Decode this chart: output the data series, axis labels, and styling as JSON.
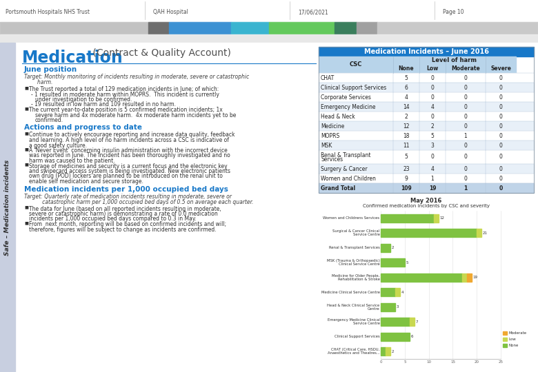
{
  "header_text": [
    "Portsmouth Hospitals NHS Trust",
    "QAH Hospital",
    "17/06/2021",
    "Page 10"
  ],
  "title_main": "Medication",
  "title_sub": " (Contract & Quality Account)",
  "section1_title": "June position",
  "section1_target_lines": [
    "Target: Monthly monitoring of incidents resulting in moderate, severe or catastrophic",
    "        harm."
  ],
  "section2_title": "Actions and progress to date",
  "section3_title": "Medication incidents per 1,000 occupied bed days",
  "section3_target_lines": [
    "Target: Quarterly rate of medication incidents resulting in moderate, severe or",
    "           catastrophic harm per 1,000 occupied bed days of 0.5 on average each quarter."
  ],
  "table_title": "Medication Incidents – June 2016",
  "table_headers": [
    "CSC",
    "None",
    "Low",
    "Moderate",
    "Severe"
  ],
  "table_subheader": "Level of harm",
  "table_rows": [
    [
      "CHAT",
      "5",
      "0",
      "0",
      "0"
    ],
    [
      "Clinical Support Services",
      "6",
      "0",
      "0",
      "0"
    ],
    [
      "Corporate Services",
      "4",
      "0",
      "0",
      "0"
    ],
    [
      "Emergency Medicine",
      "14",
      "4",
      "0",
      "0"
    ],
    [
      "Head & Neck",
      "2",
      "0",
      "0",
      "0"
    ],
    [
      "Medicine",
      "12",
      "2",
      "0",
      "0"
    ],
    [
      "MOPRS",
      "18",
      "5",
      "1",
      "0"
    ],
    [
      "MSK",
      "11",
      "3",
      "0",
      "0"
    ],
    [
      "Renal & Transplant\nServices",
      "5",
      "0",
      "0",
      "0"
    ],
    [
      "Surgery & Cancer",
      "23",
      "4",
      "0",
      "0"
    ],
    [
      "Women and Children",
      "9",
      "1",
      "0",
      "0"
    ],
    [
      "Grand Total",
      "109",
      "19",
      "1",
      "0"
    ]
  ],
  "chart_title": "May 2016",
  "chart_subtitle": "Confirmed medication incidents by CSC and severity",
  "chart_categories": [
    "Women and Childrens Services",
    "Surgical & Cancer Clinical\nService Centre",
    "Renal & Transplant Services",
    "MSK (Trauma & Orthopaedic)\nClinical Service Centre",
    "Medicine for Older People,\nRehabilitation & Stroke",
    "Medicine Clinical Service Centre",
    "Head & Neck Clinical Service\nCentre",
    "Emergency Medicine Clinical\nService Centre",
    "Clinical Support Services",
    "CHAT (Critical Care, HSDU,\nAnaesthetics and Theatres..."
  ],
  "chart_none": [
    11,
    20,
    2,
    5,
    17,
    3,
    3,
    6,
    6,
    1
  ],
  "chart_low": [
    1,
    1,
    0,
    0,
    1,
    1,
    0,
    1,
    0,
    1
  ],
  "chart_moderate": [
    0,
    0,
    0,
    0,
    1,
    0,
    0,
    0,
    0,
    0
  ],
  "color_none": "#7fc241",
  "color_low": "#c8d850",
  "color_moderate": "#f0a830",
  "table_header_bg": "#1878c8",
  "table_subheader_bg": "#b8d4ea",
  "table_row_bg1": "#ffffff",
  "table_row_bg2": "#e8f0f8",
  "table_grand_bg": "#c0d4e8",
  "sidebar_bg": "#c8cfe0",
  "sidebar_text": "Safe – Medication incidents",
  "hdr_sep_color": "#d0d0d0",
  "section_title_color": "#1878c8",
  "text_color": "#303030"
}
